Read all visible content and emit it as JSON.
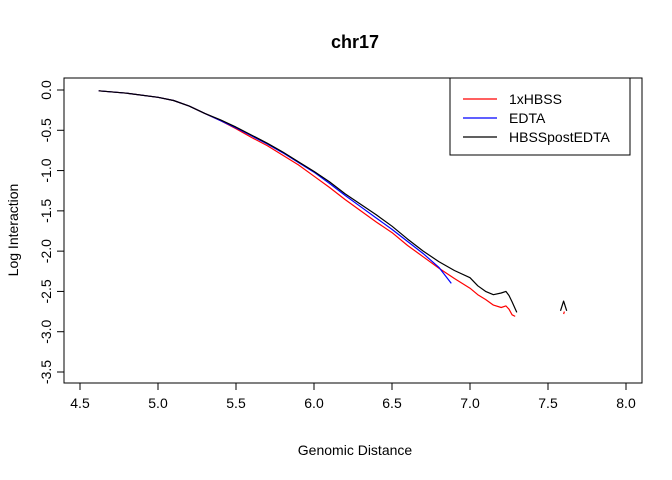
{
  "chart_data": {
    "type": "line",
    "title": "chr17",
    "xlabel": "Genomic Distance",
    "ylabel": "Log Interaction",
    "xlim": [
      4.5,
      8.0
    ],
    "ylim": [
      -3.5,
      0.0
    ],
    "xticks": [
      "4.5",
      "5.0",
      "5.5",
      "6.0",
      "6.5",
      "7.0",
      "7.5",
      "8.0"
    ],
    "yticks": [
      "0.0",
      "-0.5",
      "-1.0",
      "-1.5",
      "-2.0",
      "-2.5",
      "-3.0",
      "-3.5"
    ],
    "grid": false,
    "legend_position": "top-right",
    "series": [
      {
        "name": "1xHBSS",
        "color": "#ff0000",
        "segments": [
          [
            [
              4.62,
              -0.01
            ],
            [
              4.8,
              -0.04
            ],
            [
              5.0,
              -0.09
            ],
            [
              5.1,
              -0.13
            ],
            [
              5.2,
              -0.2
            ],
            [
              5.3,
              -0.29
            ],
            [
              5.4,
              -0.38
            ],
            [
              5.5,
              -0.48
            ],
            [
              5.6,
              -0.59
            ],
            [
              5.7,
              -0.69
            ],
            [
              5.8,
              -0.81
            ],
            [
              5.9,
              -0.93
            ],
            [
              6.0,
              -1.07
            ],
            [
              6.1,
              -1.21
            ],
            [
              6.2,
              -1.36
            ],
            [
              6.3,
              -1.5
            ],
            [
              6.4,
              -1.64
            ],
            [
              6.5,
              -1.77
            ],
            [
              6.6,
              -1.93
            ],
            [
              6.7,
              -2.07
            ],
            [
              6.8,
              -2.21
            ],
            [
              6.9,
              -2.34
            ],
            [
              7.0,
              -2.46
            ],
            [
              7.05,
              -2.54
            ],
            [
              7.1,
              -2.6
            ],
            [
              7.15,
              -2.67
            ],
            [
              7.2,
              -2.7
            ],
            [
              7.23,
              -2.68
            ],
            [
              7.25,
              -2.72
            ],
            [
              7.27,
              -2.79
            ],
            [
              7.29,
              -2.81
            ]
          ],
          [
            [
              7.6,
              -2.78
            ],
            [
              7.605,
              -2.75
            ]
          ]
        ]
      },
      {
        "name": "EDTA",
        "color": "#0000ff",
        "segments": [
          [
            [
              4.62,
              -0.01
            ],
            [
              4.8,
              -0.04
            ],
            [
              5.0,
              -0.09
            ],
            [
              5.1,
              -0.13
            ],
            [
              5.2,
              -0.2
            ],
            [
              5.3,
              -0.29
            ],
            [
              5.4,
              -0.38
            ],
            [
              5.5,
              -0.47
            ],
            [
              5.6,
              -0.57
            ],
            [
              5.7,
              -0.67
            ],
            [
              5.8,
              -0.78
            ],
            [
              5.9,
              -0.9
            ],
            [
              6.0,
              -1.02
            ],
            [
              6.1,
              -1.16
            ],
            [
              6.2,
              -1.31
            ],
            [
              6.3,
              -1.45
            ],
            [
              6.4,
              -1.59
            ],
            [
              6.5,
              -1.73
            ],
            [
              6.6,
              -1.88
            ],
            [
              6.7,
              -2.03
            ],
            [
              6.8,
              -2.2
            ],
            [
              6.88,
              -2.4
            ]
          ]
        ]
      },
      {
        "name": "HBSSpostEDTA",
        "color": "#000000",
        "segments": [
          [
            [
              4.62,
              -0.01
            ],
            [
              4.8,
              -0.04
            ],
            [
              5.0,
              -0.09
            ],
            [
              5.1,
              -0.13
            ],
            [
              5.2,
              -0.2
            ],
            [
              5.3,
              -0.29
            ],
            [
              5.4,
              -0.37
            ],
            [
              5.5,
              -0.46
            ],
            [
              5.6,
              -0.56
            ],
            [
              5.7,
              -0.66
            ],
            [
              5.8,
              -0.77
            ],
            [
              5.9,
              -0.89
            ],
            [
              6.0,
              -1.01
            ],
            [
              6.1,
              -1.14
            ],
            [
              6.2,
              -1.29
            ],
            [
              6.3,
              -1.42
            ],
            [
              6.4,
              -1.55
            ],
            [
              6.5,
              -1.69
            ],
            [
              6.6,
              -1.85
            ],
            [
              6.7,
              -2.0
            ],
            [
              6.8,
              -2.13
            ],
            [
              6.9,
              -2.24
            ],
            [
              7.0,
              -2.33
            ],
            [
              7.05,
              -2.43
            ],
            [
              7.1,
              -2.5
            ],
            [
              7.15,
              -2.54
            ],
            [
              7.2,
              -2.52
            ],
            [
              7.23,
              -2.5
            ],
            [
              7.25,
              -2.55
            ],
            [
              7.27,
              -2.63
            ],
            [
              7.3,
              -2.76
            ]
          ],
          [
            [
              7.58,
              -2.74
            ],
            [
              7.6,
              -2.62
            ],
            [
              7.62,
              -2.74
            ]
          ]
        ]
      }
    ]
  }
}
